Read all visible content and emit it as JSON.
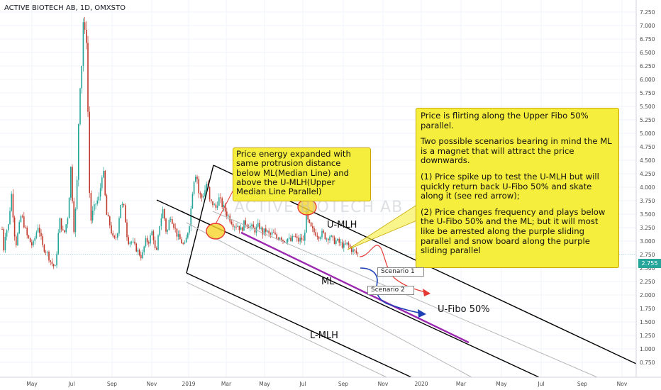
{
  "chart_data": {
    "type": "candlestick",
    "title": "ACTIVE BIOTECH AB, 1D, OMXSTO",
    "watermark": "ACTIVE BIOTECH AB",
    "ylim": [
      0.7,
      7.35
    ],
    "y_axis_ticks": [
      "7.250",
      "7.000",
      "6.750",
      "6.500",
      "6.250",
      "6.000",
      "5.750",
      "5.500",
      "5.250",
      "5.000",
      "4.750",
      "4.500",
      "4.250",
      "4.000",
      "3.750",
      "3.500",
      "3.250",
      "3.000",
      "2.750",
      "2.500",
      "2.250",
      "2.000",
      "1.750",
      "1.500",
      "1.250",
      "1.000",
      "0.750"
    ],
    "y_tick_values": [
      7.25,
      7.0,
      6.75,
      6.5,
      6.25,
      6.0,
      5.75,
      5.5,
      5.25,
      5.0,
      4.75,
      4.5,
      4.25,
      4.0,
      3.75,
      3.5,
      3.25,
      3.0,
      2.75,
      2.5,
      2.25,
      2.0,
      1.75,
      1.5,
      1.25,
      1.0,
      0.75
    ],
    "x_axis_ticks": [
      "May",
      "Jul",
      "Sep",
      "Nov",
      "2019",
      "Mar",
      "May",
      "Jul",
      "Sep",
      "Nov",
      "2020",
      "Mar",
      "May",
      "Jul",
      "Sep",
      "Nov"
    ],
    "current_price": "2.755",
    "close_anchors": [
      [
        2.9,
        3.3
      ],
      [
        3.8,
        2.6
      ],
      [
        6.5,
        3.1
      ],
      [
        12,
        3.3
      ],
      [
        16,
        3.9
      ],
      [
        22,
        2.9
      ],
      [
        30,
        3.5
      ],
      [
        38,
        3.1
      ],
      [
        46,
        2.9
      ],
      [
        54,
        3.3
      ],
      [
        60,
        2.9
      ],
      [
        66,
        2.8
      ],
      [
        72,
        2.6
      ],
      [
        78,
        2.5
      ],
      [
        84,
        3.4
      ],
      [
        90,
        3.1
      ],
      [
        96,
        3.5
      ],
      [
        100,
        4.4
      ],
      [
        104,
        3.2
      ],
      [
        108,
        3.8
      ],
      [
        112,
        5.8
      ],
      [
        115,
        6.2
      ],
      [
        117,
        7.2
      ],
      [
        119,
        6.6
      ],
      [
        121,
        7.3
      ],
      [
        123,
        6.0
      ],
      [
        125,
        4.8
      ],
      [
        127,
        3.3
      ],
      [
        130,
        3.5
      ],
      [
        135,
        3.7
      ],
      [
        140,
        3.8
      ],
      [
        145,
        4.4
      ],
      [
        150,
        3.5
      ],
      [
        155,
        3.3
      ],
      [
        160,
        3.0
      ],
      [
        165,
        3.1
      ],
      [
        170,
        3.7
      ],
      [
        175,
        3.6
      ],
      [
        180,
        3.0
      ],
      [
        185,
        3.0
      ],
      [
        190,
        2.9
      ],
      [
        195,
        2.8
      ],
      [
        200,
        2.7
      ],
      [
        205,
        3.0
      ],
      [
        210,
        3.0
      ],
      [
        215,
        3.2
      ],
      [
        220,
        2.7
      ],
      [
        225,
        3.3
      ],
      [
        230,
        3.6
      ],
      [
        235,
        3.1
      ],
      [
        240,
        3.5
      ],
      [
        245,
        3.3
      ],
      [
        250,
        3.1
      ],
      [
        255,
        3.0
      ],
      [
        260,
        2.9
      ],
      [
        262,
        3.0
      ],
      [
        265,
        3.2
      ],
      [
        268,
        3.4
      ],
      [
        271,
        3.9
      ],
      [
        274,
        4.2
      ],
      [
        277,
        4.3
      ],
      [
        280,
        3.9
      ],
      [
        284,
        3.8
      ],
      [
        288,
        3.9
      ],
      [
        292,
        4.1
      ],
      [
        296,
        3.7
      ],
      [
        300,
        3.7
      ],
      [
        304,
        3.6
      ],
      [
        308,
        3.8
      ],
      [
        312,
        3.7
      ],
      [
        316,
        3.6
      ],
      [
        320,
        3.5
      ],
      [
        325,
        3.4
      ],
      [
        330,
        3.3
      ],
      [
        335,
        3.3
      ],
      [
        340,
        3.2
      ],
      [
        345,
        3.35
      ],
      [
        350,
        3.3
      ],
      [
        355,
        3.25
      ],
      [
        360,
        3.2
      ],
      [
        365,
        3.3
      ],
      [
        370,
        3.15
      ],
      [
        375,
        3.2
      ],
      [
        380,
        3.1
      ],
      [
        385,
        3.15
      ],
      [
        390,
        3.05
      ],
      [
        395,
        3.1
      ],
      [
        400,
        3.0
      ],
      [
        405,
        3.05
      ],
      [
        410,
        3.0
      ],
      [
        415,
        3.1
      ],
      [
        420,
        3.0
      ],
      [
        425,
        3.05
      ],
      [
        429,
        2.95
      ],
      [
        431,
        3.6
      ],
      [
        433,
        3.4
      ],
      [
        436,
        3.3
      ],
      [
        440,
        3.2
      ],
      [
        445,
        3.15
      ],
      [
        450,
        3.1
      ],
      [
        455,
        3.15
      ],
      [
        460,
        3.05
      ],
      [
        465,
        3.1
      ],
      [
        470,
        3.0
      ],
      [
        475,
        3.0
      ],
      [
        480,
        2.95
      ],
      [
        485,
        2.9
      ],
      [
        490,
        2.95
      ],
      [
        495,
        2.85
      ],
      [
        500,
        2.8
      ],
      [
        505,
        2.76
      ]
    ]
  },
  "labels": {
    "u_mlh": "U-MLH",
    "ml": "ML",
    "l_mlh": "L-MLH",
    "u_fibo": "U-Fibo 50%",
    "scenario_1": "Scenario 1",
    "scenario_2": "Scenario 2"
  },
  "notes": {
    "energy": "Price energy expanded with same protrusion distance below ML(Median Line) and above the U-MLH(Upper Median Line Parallel)",
    "main_p1": "Price is flirting along the Upper Fibo 50% parallel.",
    "main_p2": "Two possible scenarios bearing in mind the ML is a magnet that will attract the price downwards.",
    "main_p3": "(1) Price spike up to test the U-MLH but will quickly return back U-Fibo 50% and skate along it (see red arrow);",
    "main_p4": "(2) Price changes frequency and plays below the U-Fibo 50% and the ML; but it will most like be arrested along the purple sliding parallel and snow board along the purple sliding parallel"
  },
  "colors": {
    "up": "#26a69a",
    "down": "#c0392b",
    "pitchfork": "#000000",
    "fibo": "#b8b8b8",
    "purple_parallel": "#9c27b0",
    "scenario_red": "#e53935",
    "scenario_blue": "#1f3fb5",
    "note_fill": "#f6ee3c"
  }
}
